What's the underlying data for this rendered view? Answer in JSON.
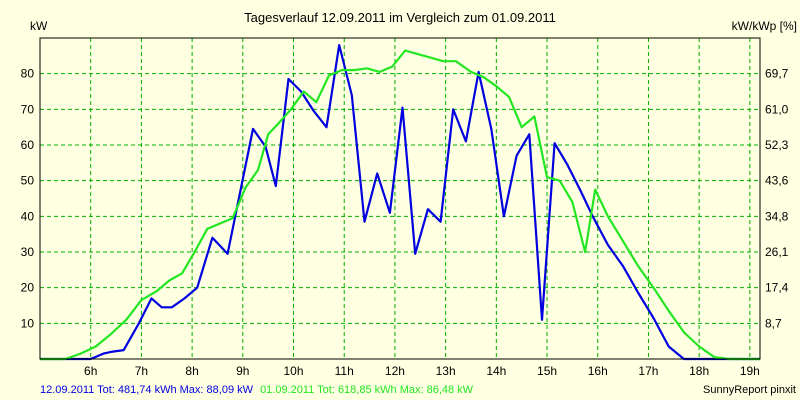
{
  "chart_data": {
    "type": "line",
    "title": "Tagesverlauf 12.09.2011 im Vergleich zum 01.09.2011",
    "ylabel_left": "kW",
    "ylabel_right": "kW/kWp [%]",
    "xlim": [
      5.0,
      19.2
    ],
    "ylim": [
      0,
      90
    ],
    "y_ticks": [
      10,
      20,
      30,
      40,
      50,
      60,
      70,
      80
    ],
    "y_tick_labels": [
      "10",
      "20",
      "30",
      "40",
      "50",
      "60",
      "70",
      "80"
    ],
    "y_right_ticks": [
      "8,7",
      "17,4",
      "26,1",
      "34,8",
      "43,6",
      "52,3",
      "61,0",
      "69,7"
    ],
    "x_ticks": [
      6,
      7,
      8,
      9,
      10,
      11,
      12,
      13,
      14,
      15,
      16,
      17,
      18,
      19
    ],
    "x_tick_labels": [
      "6h",
      "7h",
      "8h",
      "9h",
      "10h",
      "11h",
      "12h",
      "13h",
      "14h",
      "15h",
      "16h",
      "17h",
      "18h",
      "19h"
    ],
    "grid": true,
    "colors": {
      "background": "#ffffe1",
      "plot_background": "#ffffe1",
      "grid": "#00b000",
      "series_blue": "#0000e0",
      "series_green": "#22e622"
    },
    "series": [
      {
        "color": "#0000e0",
        "x": [
          5.0,
          5.5,
          6.0,
          6.25,
          6.4,
          6.65,
          6.95,
          7.2,
          7.4,
          7.6,
          7.85,
          8.1,
          8.4,
          8.7,
          8.95,
          9.2,
          9.45,
          9.65,
          9.9,
          10.15,
          10.4,
          10.65,
          10.9,
          11.15,
          11.4,
          11.65,
          11.9,
          12.15,
          12.4,
          12.65,
          12.9,
          13.15,
          13.4,
          13.65,
          13.9,
          14.15,
          14.4,
          14.65,
          14.9,
          15.15,
          15.4,
          15.65,
          15.9,
          16.2,
          16.5,
          16.8,
          17.1,
          17.4,
          17.7,
          18.0,
          18.3,
          18.6,
          19.0,
          19.2
        ],
        "y": [
          0,
          0,
          0,
          1.5,
          2,
          2.5,
          10,
          17,
          14.5,
          14.5,
          17,
          20,
          34,
          29.5,
          47,
          64.5,
          59.5,
          48.5,
          78.5,
          75,
          69.5,
          65,
          88,
          74,
          38.5,
          52,
          41,
          70.5,
          29.5,
          42,
          38.5,
          70,
          61,
          80.5,
          64.5,
          40,
          57,
          63,
          11,
          60.5,
          54.5,
          47.5,
          40,
          32,
          26,
          18.5,
          11.5,
          3.5,
          0,
          0,
          0,
          0,
          0,
          0
        ]
      },
      {
        "color": "#22e622",
        "x": [
          5.0,
          5.5,
          5.8,
          6.1,
          6.4,
          6.7,
          7.0,
          7.3,
          7.55,
          7.8,
          8.05,
          8.3,
          8.55,
          8.8,
          9.05,
          9.3,
          9.5,
          9.7,
          9.95,
          10.2,
          10.45,
          10.7,
          10.95,
          11.2,
          11.45,
          11.7,
          11.95,
          12.2,
          12.45,
          12.7,
          12.95,
          13.2,
          13.5,
          13.75,
          14.0,
          14.25,
          14.5,
          14.75,
          15.0,
          15.25,
          15.5,
          15.75,
          15.95,
          16.2,
          16.5,
          16.8,
          17.1,
          17.4,
          17.7,
          18.0,
          18.3,
          18.6,
          18.9,
          19.2
        ],
        "y": [
          0,
          0,
          1.5,
          3.5,
          7,
          11,
          16.5,
          19,
          22,
          24,
          30,
          36.5,
          38,
          39.5,
          48,
          53,
          63,
          66,
          70,
          75,
          72,
          79.5,
          81,
          81,
          81.5,
          80.5,
          82,
          86.5,
          85.5,
          84.5,
          83.5,
          83.5,
          80.5,
          79,
          76.5,
          73.5,
          65,
          68,
          51,
          50,
          44,
          30,
          47.5,
          40,
          33,
          26,
          20,
          13.5,
          7.5,
          3.5,
          0.5,
          0,
          0,
          0
        ]
      }
    ]
  },
  "footer": {
    "left_blue": "12.09.2011 Tot: 481,74 kWh Max: 88,09 kW",
    "left_green": "01.09.2011 Tot: 618,85 kWh Max: 86,48 kW",
    "right": "SunnyReport pinxit"
  }
}
